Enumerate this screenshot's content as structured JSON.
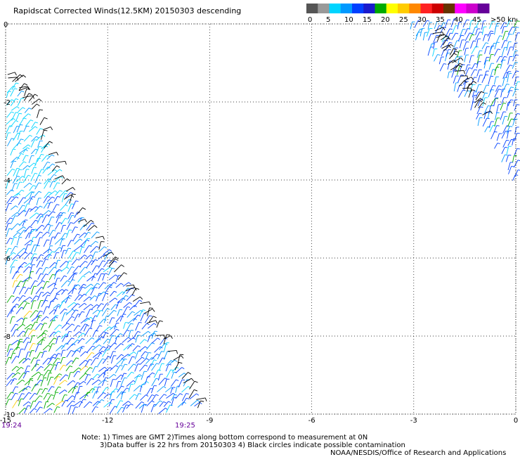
{
  "header": {
    "title": "Rapidscat Corrected Winds(12.5KM) 20150303 descending"
  },
  "colorbar": {
    "colors": [
      "#555555",
      "#999999",
      "#00d4ff",
      "#0099ff",
      "#0040ff",
      "#1a1acc",
      "#00aa00",
      "#ffff00",
      "#ffcc00",
      "#ff8800",
      "#ff2222",
      "#cc0000",
      "#663300",
      "#ff00ff",
      "#cc00cc",
      "#660099"
    ],
    "labels": [
      "0",
      "5",
      "10",
      "15",
      "20",
      "25",
      "30",
      "35",
      "40",
      "45",
      ">50 knots"
    ],
    "unit": "knots"
  },
  "axes": {
    "x_ticks": [
      "-15",
      "-12",
      "-9",
      "-6",
      "-3",
      "0"
    ],
    "y_ticks": [
      "0",
      "-2",
      "-4",
      "-6",
      "-8",
      "-10"
    ],
    "xlim": [
      -15,
      0
    ],
    "ylim": [
      -10,
      0
    ],
    "grid": "dotted"
  },
  "times": {
    "start": "19:24",
    "mid": "19:25"
  },
  "notes": {
    "line1": "Note: 1) Times are GMT 2)Times along bottom correspond to measurement at 0N",
    "line2": "3)Data buffer is 22 hrs from 20150303 4) Black circles indicate possible contamination",
    "credit": "NOAA/NESDIS/Office of Research and Applications"
  },
  "swaths": [
    {
      "name": "west-swath",
      "polygon_lonlat": [
        [
          -15,
          -1.2
        ],
        [
          -14.6,
          -1.9
        ],
        [
          -13.2,
          -4.5
        ],
        [
          -11.5,
          -6.7
        ],
        [
          -10.5,
          -8.1
        ],
        [
          -9.2,
          -10
        ],
        [
          -15,
          -10
        ]
      ]
    },
    {
      "name": "east-swath",
      "polygon_lonlat": [
        [
          -3.3,
          0
        ],
        [
          0,
          0
        ],
        [
          0,
          -4.3
        ],
        [
          -1.2,
          -2.5
        ]
      ]
    }
  ],
  "wind_colors": {
    "calm": "#555555",
    "light": "#00d4ff",
    "moderate": "#0099ff",
    "strong": "#0040ff",
    "fresh": "#00aa00",
    "high": "#ffcc00",
    "contaminated": "#000000"
  }
}
